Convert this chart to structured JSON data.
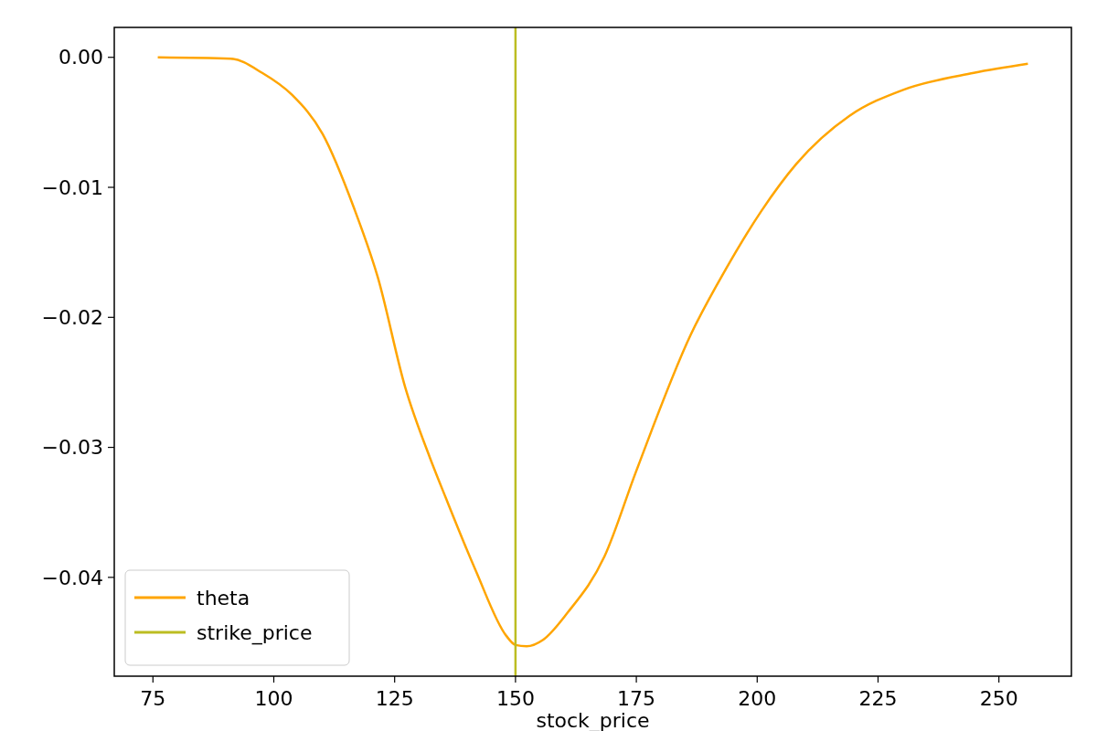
{
  "chart_data": {
    "type": "line",
    "xlabel": "stock_price",
    "x": [
      76,
      91.1,
      97.6,
      103.8,
      110.1,
      116.6,
      121.5,
      127.2,
      132.3,
      135.6,
      141.8,
      148.1,
      150,
      152.3,
      155.7,
      160.8,
      168.4,
      174.9,
      186.3,
      193.5,
      200.9,
      208.1,
      219.1,
      230.2,
      244.8,
      256
    ],
    "series": [
      {
        "name": "theta",
        "color": "#ffa500",
        "values": [
          0,
          -0.0001,
          -0.0012,
          -0.0029,
          -0.0059,
          -0.0116,
          -0.0169,
          -0.0254,
          -0.0308,
          -0.0339,
          -0.0395,
          -0.0445,
          -0.0452,
          -0.0453,
          -0.0448,
          -0.0427,
          -0.0384,
          -0.0319,
          -0.0213,
          -0.0163,
          -0.0118,
          -0.0082,
          -0.0045,
          -0.0025,
          -0.0012,
          -0.0005
        ]
      },
      {
        "name": "strike_price",
        "color": "#bcbd22",
        "x": [
          150,
          150
        ],
        "values": [
          -0.0476,
          0.0023
        ]
      }
    ],
    "xlim": [
      67,
      265
    ],
    "ylim": [
      -0.0476,
      0.0023
    ],
    "xticks": [
      75,
      100,
      125,
      150,
      175,
      200,
      225,
      250
    ],
    "yticks": [
      {
        "value": 0,
        "label": "0.00"
      },
      {
        "value": -0.01,
        "label": "−0.01"
      },
      {
        "value": -0.02,
        "label": "−0.02"
      },
      {
        "value": -0.03,
        "label": "−0.03"
      },
      {
        "value": -0.04,
        "label": "−0.04"
      }
    ],
    "legend": "bottom left",
    "line_style": "solid",
    "marker": "none",
    "grid": false
  }
}
